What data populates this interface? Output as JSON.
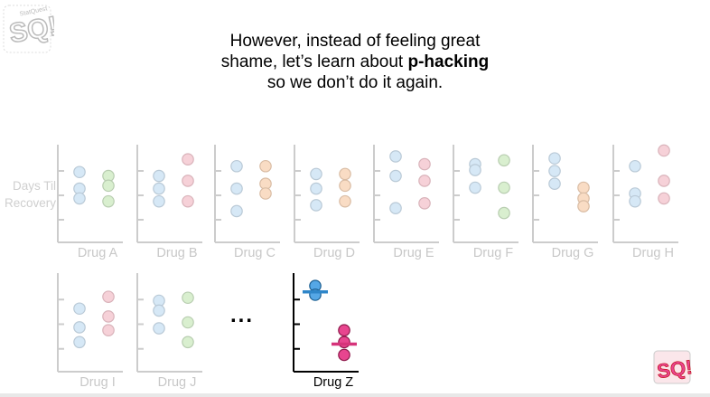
{
  "caption": {
    "line1": "However, instead of feeling great",
    "line2_prefix": "shame, let’s learn about ",
    "line2_bold": "p-hacking",
    "line3": "so we don’t do it again."
  },
  "y_axis_label": "Days Til\nRecovery",
  "ellipsis": "...",
  "logo_text": "SQ!",
  "colors": {
    "blue_faded": "#d6e8f6",
    "blue_faded_stroke": "#b9c9d6",
    "red_faded": "#f6d1d8",
    "red_faded_stroke": "#d9b3ba",
    "green_faded": "#d9efcf",
    "green_faded_stroke": "#b8cdb0",
    "orange_faded": "#f9dcc4",
    "orange_faded_stroke": "#d9bca4",
    "axis_faded": "#cccccc",
    "blue": "#55a7e6",
    "magenta": "#e8458f",
    "blue_line": "#2e86c9",
    "magenta_line": "#d6337a"
  },
  "panels": [
    {
      "label": "Drug A",
      "a": [
        [
          0.0,
          0.28
        ],
        [
          0.0,
          0.45
        ],
        [
          0.0,
          0.55
        ]
      ],
      "b": [
        [
          1.0,
          0.32
        ],
        [
          1.0,
          0.42
        ],
        [
          1.0,
          0.58
        ]
      ],
      "bcolor": "green"
    },
    {
      "label": "Drug B",
      "a": [
        [
          0.0,
          0.32
        ],
        [
          0.0,
          0.45
        ],
        [
          0.0,
          0.58
        ]
      ],
      "b": [
        [
          1.0,
          0.15
        ],
        [
          1.0,
          0.37
        ],
        [
          1.0,
          0.58
        ]
      ],
      "bcolor": "red"
    },
    {
      "label": "Drug C",
      "a": [
        [
          0.0,
          0.22
        ],
        [
          0.0,
          0.45
        ],
        [
          0.0,
          0.68
        ]
      ],
      "b": [
        [
          1.0,
          0.22
        ],
        [
          1.0,
          0.4
        ],
        [
          1.0,
          0.5
        ]
      ],
      "bcolor": "orange"
    },
    {
      "label": "Drug D",
      "a": [
        [
          0.0,
          0.3
        ],
        [
          0.0,
          0.45
        ],
        [
          0.0,
          0.62
        ]
      ],
      "b": [
        [
          1.0,
          0.3
        ],
        [
          1.0,
          0.42
        ],
        [
          1.0,
          0.58
        ]
      ],
      "bcolor": "orange"
    },
    {
      "label": "Drug E",
      "a": [
        [
          0.0,
          0.12
        ],
        [
          0.0,
          0.32
        ],
        [
          0.0,
          0.65
        ]
      ],
      "b": [
        [
          1.0,
          0.2
        ],
        [
          1.0,
          0.37
        ],
        [
          1.0,
          0.6
        ]
      ],
      "bcolor": "red"
    },
    {
      "label": "Drug F",
      "a": [
        [
          0.0,
          0.2
        ],
        [
          0.0,
          0.26
        ],
        [
          0.0,
          0.44
        ]
      ],
      "b": [
        [
          1.0,
          0.16
        ],
        [
          1.0,
          0.44
        ],
        [
          1.0,
          0.7
        ]
      ],
      "bcolor": "green"
    },
    {
      "label": "Drug G",
      "a": [
        [
          0.0,
          0.14
        ],
        [
          0.0,
          0.27
        ],
        [
          0.0,
          0.4
        ]
      ],
      "b": [
        [
          1.0,
          0.44
        ],
        [
          1.0,
          0.55
        ],
        [
          1.0,
          0.63
        ]
      ],
      "bcolor": "orange"
    },
    {
      "label": "Drug H",
      "a": [
        [
          0.0,
          0.22
        ],
        [
          0.0,
          0.5
        ],
        [
          0.0,
          0.58
        ]
      ],
      "b": [
        [
          1.0,
          0.06
        ],
        [
          1.0,
          0.37
        ],
        [
          1.0,
          0.55
        ]
      ],
      "bcolor": "red"
    },
    {
      "label": "Drug I",
      "a": [
        [
          0.0,
          0.36
        ],
        [
          0.0,
          0.55
        ],
        [
          0.0,
          0.7
        ]
      ],
      "b": [
        [
          1.0,
          0.24
        ],
        [
          1.0,
          0.44
        ],
        [
          1.0,
          0.58
        ]
      ],
      "bcolor": "red"
    },
    {
      "label": "Drug J",
      "a": [
        [
          0.0,
          0.28
        ],
        [
          0.0,
          0.38
        ],
        [
          0.0,
          0.56
        ]
      ],
      "b": [
        [
          1.0,
          0.25
        ],
        [
          1.0,
          0.5
        ],
        [
          1.0,
          0.7
        ]
      ],
      "bcolor": "green"
    }
  ],
  "drug_z": {
    "label": "Drug Z",
    "a": [
      [
        0.0,
        0.13
      ],
      [
        0.0,
        0.22
      ]
    ],
    "b": [
      [
        1.0,
        0.58
      ],
      [
        1.0,
        0.7
      ],
      [
        1.0,
        0.83
      ]
    ],
    "a_mean": 0.19,
    "b_mean": 0.72
  }
}
